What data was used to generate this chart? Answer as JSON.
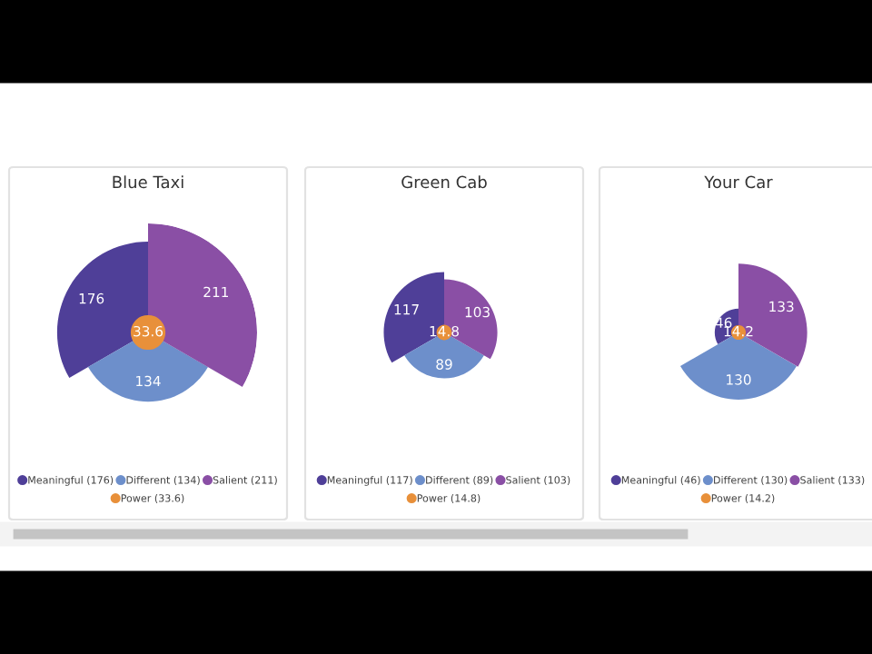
{
  "chart_data": [
    {
      "type": "other",
      "title": "Blue Taxi",
      "categories": [
        "Meaningful (176)",
        "Different (134)",
        "Salient (211)",
        "Power (33.6)"
      ],
      "values": [
        176,
        134,
        211,
        33.6
      ],
      "colors": [
        "#4f3f98",
        "#6d8fcb",
        "#8a4fa5",
        "#e8903a"
      ],
      "data_labels": true
    },
    {
      "type": "other",
      "title": "Green Cab",
      "categories": [
        "Meaningful (117)",
        "Different (89)",
        "Salient (103)",
        "Power (14.8)"
      ],
      "values": [
        117,
        89,
        103,
        14.8
      ],
      "colors": [
        "#4f3f98",
        "#6d8fcb",
        "#8a4fa5",
        "#e8903a"
      ],
      "data_labels": true
    },
    {
      "type": "other",
      "title": "Your Car",
      "categories": [
        "Meaningful (46)",
        "Different (130)",
        "Salient (133)",
        "Power (14.2)"
      ],
      "values": [
        46,
        130,
        133,
        14.2
      ],
      "colors": [
        "#4f3f98",
        "#6d8fcb",
        "#8a4fa5",
        "#e8903a"
      ],
      "data_labels": true
    }
  ]
}
